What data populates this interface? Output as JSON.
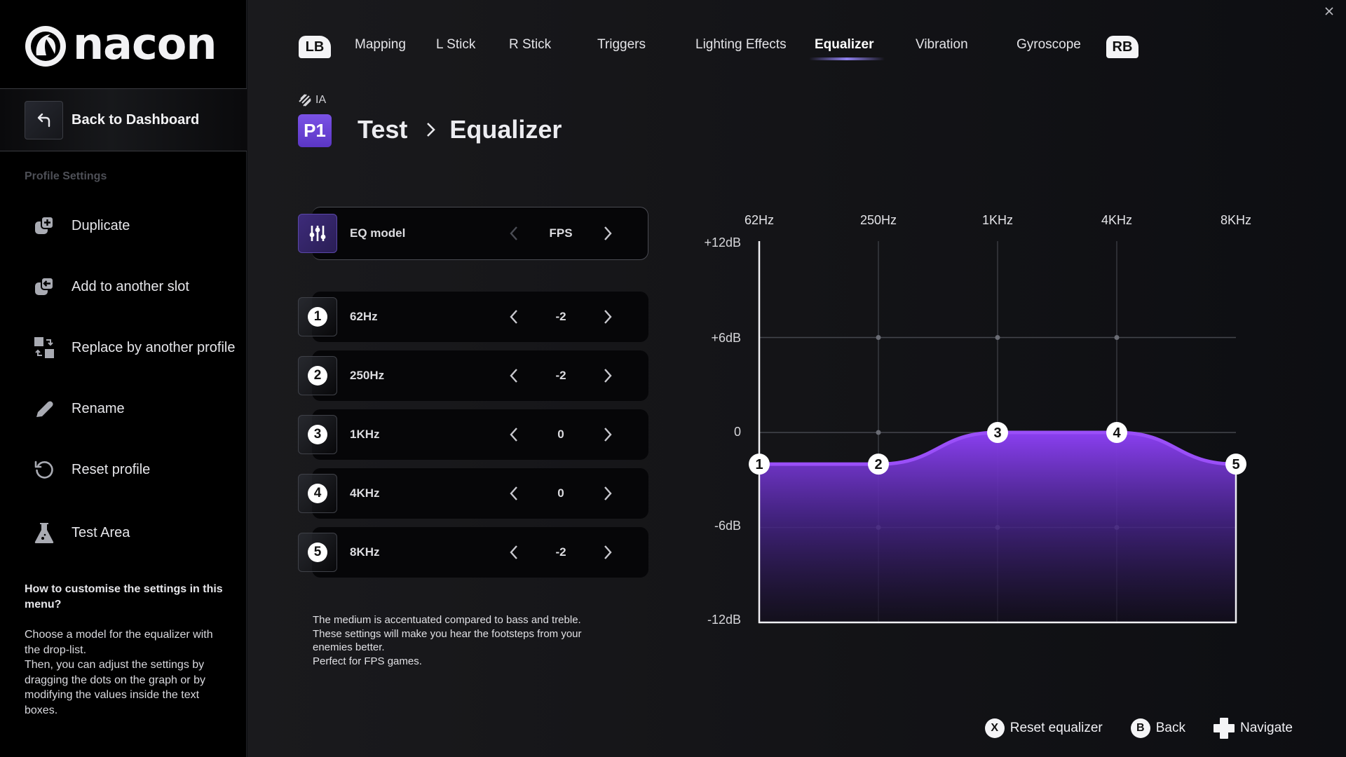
{
  "window": {
    "close_icon": "close-icon"
  },
  "brand": {
    "name": "nacon"
  },
  "sidebar": {
    "back_label": "Back to Dashboard",
    "section_title": "Profile Settings",
    "items": [
      {
        "label": "Duplicate",
        "icon": "duplicate-icon"
      },
      {
        "label": "Add to another slot",
        "icon": "add-to-slot-icon"
      },
      {
        "label": "Replace by another profile",
        "icon": "replace-icon"
      },
      {
        "label": "Rename",
        "icon": "pencil-icon"
      },
      {
        "label": "Reset profile",
        "icon": "reset-icon"
      },
      {
        "label": "Test Area",
        "icon": "flask-icon"
      }
    ],
    "help": {
      "title": "How to customise the settings in this menu?",
      "body": "Choose a model for the equalizer with the drop-list.\nThen, you can adjust the settings by dragging the dots on the graph or by modifying the values inside the text boxes."
    }
  },
  "tabs": {
    "left_bumper": "LB",
    "right_bumper": "RB",
    "items": [
      {
        "label": "Mapping",
        "active": false
      },
      {
        "label": "L Stick",
        "active": false
      },
      {
        "label": "R Stick",
        "active": false
      },
      {
        "label": "Triggers",
        "active": false
      },
      {
        "label": "Lighting Effects",
        "active": false
      },
      {
        "label": "Equalizer",
        "active": true
      },
      {
        "label": "Vibration",
        "active": false
      },
      {
        "label": "Gyroscope",
        "active": false
      }
    ]
  },
  "header": {
    "ia_label": "IA",
    "profile_badge": "P1",
    "breadcrumb": [
      "Test",
      "Equalizer"
    ]
  },
  "eq_model": {
    "label": "EQ model",
    "value": "FPS"
  },
  "bands": [
    {
      "num": "1",
      "label": "62Hz",
      "value": "-2"
    },
    {
      "num": "2",
      "label": "250Hz",
      "value": "-2"
    },
    {
      "num": "3",
      "label": "1KHz",
      "value": "0"
    },
    {
      "num": "4",
      "label": "4KHz",
      "value": "0"
    },
    {
      "num": "5",
      "label": "8KHz",
      "value": "-2"
    }
  ],
  "description": "The medium is accentuated compared to bass and treble.\nThese settings will make you hear the footsteps from your enemies better.\nPerfect for FPS games.",
  "footer": [
    {
      "button": "X",
      "label": "Reset equalizer"
    },
    {
      "button": "B",
      "label": "Back"
    },
    {
      "button": "dpad",
      "label": "Navigate"
    }
  ],
  "colors": {
    "accent": "#8f45f5",
    "accent_dark": "#5b36c4",
    "tab_underline": "#8f80ee",
    "background": "#0c0d10",
    "sidebar": "#000000"
  },
  "chart_data": {
    "type": "area",
    "title": "",
    "categories": [
      "62Hz",
      "250Hz",
      "1KHz",
      "4KHz",
      "8KHz"
    ],
    "values": [
      -2,
      -2,
      0,
      0,
      -2
    ],
    "point_labels": [
      "1",
      "2",
      "3",
      "4",
      "5"
    ],
    "yticks": [
      "+12dB",
      "+6dB",
      "0",
      "-6dB",
      "-12dB"
    ],
    "ylim": [
      -12,
      12
    ],
    "xlabel": "",
    "ylabel": "",
    "grid": true,
    "legend": false
  }
}
